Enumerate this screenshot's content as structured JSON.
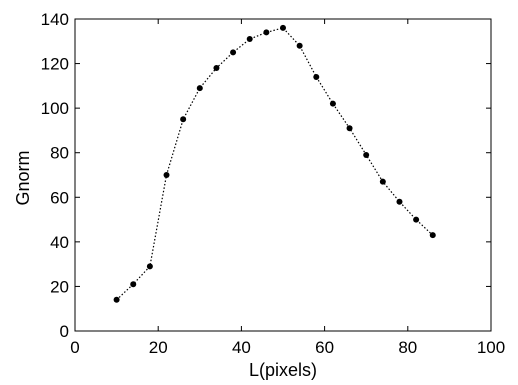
{
  "chart_data": {
    "type": "line",
    "title": "",
    "xlabel": "L(pixels)",
    "ylabel": "Gnorm",
    "xlim": [
      0,
      100
    ],
    "ylim": [
      0,
      140
    ],
    "xticks": [
      0,
      20,
      40,
      60,
      80,
      100
    ],
    "yticks": [
      0,
      20,
      40,
      60,
      80,
      100,
      120,
      140
    ],
    "grid": false,
    "legend": "none",
    "line_style": "dotted",
    "marker": "filled-circle",
    "color": "#000000",
    "series": [
      {
        "x": [
          10,
          14,
          18,
          22,
          26,
          30,
          34,
          38,
          42,
          46,
          50,
          54,
          58,
          62,
          66,
          70,
          74,
          78,
          82,
          86
        ],
        "y": [
          14,
          21,
          29,
          70,
          95,
          109,
          118,
          125,
          131,
          134,
          136,
          128,
          114,
          102,
          91,
          79,
          67,
          58,
          50,
          43
        ]
      }
    ]
  }
}
